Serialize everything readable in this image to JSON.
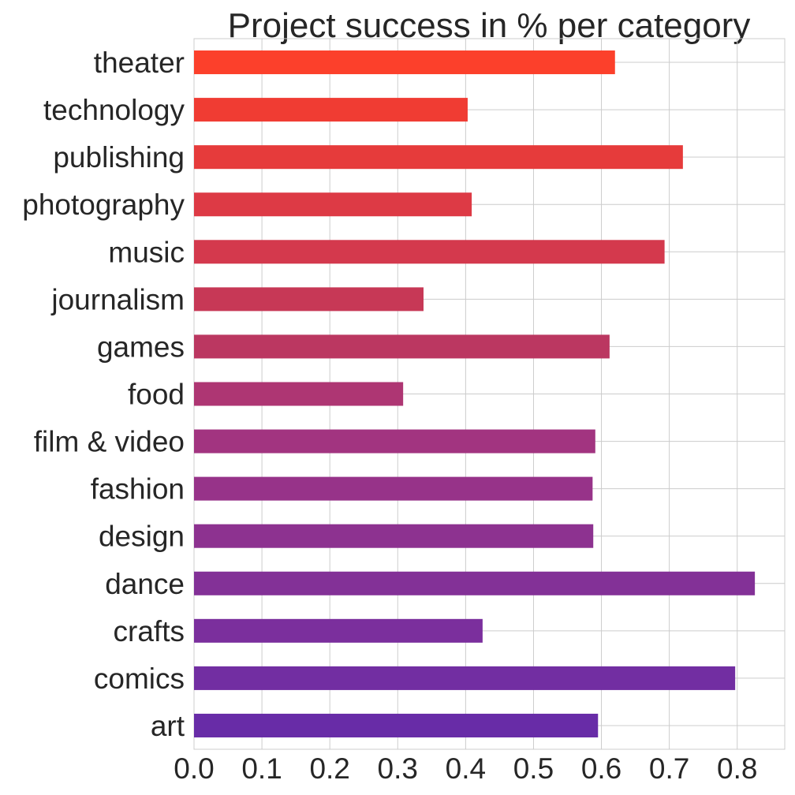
{
  "chart_data": {
    "type": "bar",
    "orientation": "horizontal",
    "title": "Project success in % per category",
    "xlabel": "",
    "ylabel": "",
    "categories": [
      "art",
      "comics",
      "crafts",
      "dance",
      "design",
      "fashion",
      "film & video",
      "food",
      "games",
      "journalism",
      "music",
      "photography",
      "publishing",
      "technology",
      "theater"
    ],
    "values": [
      0.595,
      0.797,
      0.425,
      0.826,
      0.588,
      0.587,
      0.591,
      0.308,
      0.612,
      0.338,
      0.693,
      0.409,
      0.72,
      0.403,
      0.62
    ],
    "colors": [
      "#682ca7",
      "#722ea2",
      "#7b2f9d",
      "#833197",
      "#8d3290",
      "#973389",
      "#a23480",
      "#ae3673",
      "#bb3761",
      "#c73856",
      "#d4394d",
      "#dd3a45",
      "#e63b3b",
      "#f03c33",
      "#fc402b"
    ],
    "xlim": [
      0,
      0.87
    ],
    "xticks": [
      "0.0",
      "0.1",
      "0.2",
      "0.3",
      "0.4",
      "0.5",
      "0.6",
      "0.7",
      "0.8"
    ],
    "grid": true,
    "legend": "none"
  }
}
